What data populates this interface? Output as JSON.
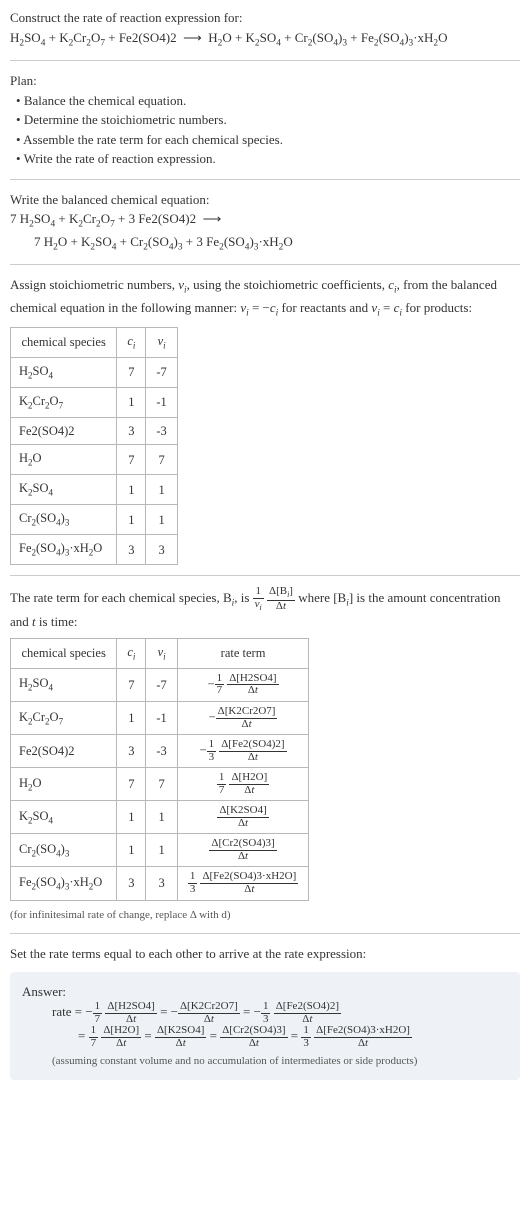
{
  "colors": {
    "text": "#333333",
    "rule": "#cccccc",
    "border": "#b8b8b8",
    "answer_bg": "#eef2f6"
  },
  "intro": {
    "line1": "Construct the rate of reaction expression for:"
  },
  "plan": {
    "heading": "Plan:",
    "b1": "Balance the chemical equation.",
    "b2": "Determine the stoichiometric numbers.",
    "b3": "Assemble the rate term for each chemical species.",
    "b4": "Write the rate of reaction expression."
  },
  "balanced_heading": "Write the balanced chemical equation:",
  "stoich_text": {
    "part1": "Assign stoichiometric numbers, ",
    "part2": ", using the stoichiometric coefficients, ",
    "part3": ", from the balanced chemical equation in the following manner: ",
    "part4": " for reactants and ",
    "part5": " for products:"
  },
  "stoich_table": {
    "headers": {
      "species": "chemical species",
      "ci": "cᵢ",
      "vi": "νᵢ"
    },
    "rows": [
      {
        "sp": "H2SO4",
        "ci": "7",
        "vi": "-7"
      },
      {
        "sp": "K2Cr2O7",
        "ci": "1",
        "vi": "-1"
      },
      {
        "sp": "Fe2(SO4)2",
        "ci": "3",
        "vi": "-3"
      },
      {
        "sp": "H2O",
        "ci": "7",
        "vi": "7"
      },
      {
        "sp": "K2SO4",
        "ci": "1",
        "vi": "1"
      },
      {
        "sp": "Cr2(SO4)3",
        "ci": "1",
        "vi": "1"
      },
      {
        "sp": "Fe2(SO4)3·xH2O",
        "ci": "3",
        "vi": "3"
      }
    ]
  },
  "rate_intro": {
    "p1": "The rate term for each chemical species, ",
    "p2": ", is ",
    "p3": " where ",
    "p4": " is the amount concentration and ",
    "p5": " is time:"
  },
  "rate_table": {
    "headers": {
      "species": "chemical species",
      "ci": "cᵢ",
      "vi": "νᵢ",
      "rate": "rate term"
    }
  },
  "infinitesimal_note": "(for infinitesimal rate of change, replace Δ with d)",
  "set_equal": "Set the rate terms equal to each other to arrive at the rate expression:",
  "answer": {
    "label": "Answer:",
    "note": "(assuming constant volume and no accumulation of intermediates or side products)"
  }
}
